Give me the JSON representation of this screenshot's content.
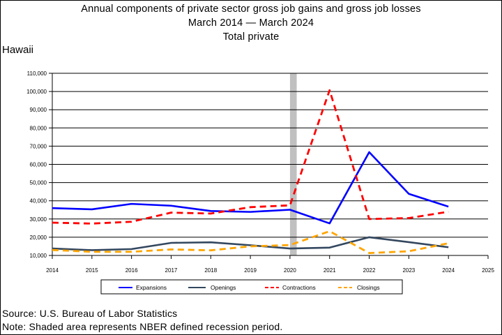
{
  "header": {
    "line1": "Annual components of private sector gross job gains and gross job losses",
    "line2": "March 2014 — March 2024",
    "line3": "Total private"
  },
  "region": "Hawaii",
  "footer": {
    "source": "Source: U.S. Bureau of Labor Statistics",
    "note": "Note: Shaded area represents NBER defined recession period."
  },
  "chart_data": {
    "type": "line",
    "x": [
      2014,
      2015,
      2016,
      2017,
      2018,
      2019,
      2020,
      2021,
      2022,
      2023,
      2024
    ],
    "xticks": [
      "2014",
      "2015",
      "2016",
      "2017",
      "2018",
      "2019",
      "2020",
      "2021",
      "2022",
      "2023",
      "2024",
      "2025"
    ],
    "xlim": [
      2014,
      2025
    ],
    "ylim": [
      10000,
      110000
    ],
    "yticks": [
      "10,000",
      "20,000",
      "30,000",
      "40,000",
      "50,000",
      "60,000",
      "70,000",
      "80,000",
      "90,000",
      "100,000",
      "110,000"
    ],
    "recession": [
      2020,
      2020.17
    ],
    "series": [
      {
        "name": "Expansions",
        "color": "#0000ff",
        "dash": "solid",
        "values": [
          36000,
          35300,
          38300,
          37300,
          34400,
          33900,
          35100,
          27600,
          66700,
          43800,
          36800
        ]
      },
      {
        "name": "Openings",
        "color": "#33475f",
        "dash": "solid",
        "values": [
          13800,
          12900,
          13500,
          16900,
          17200,
          15600,
          13800,
          14300,
          20000,
          17300,
          14500
        ]
      },
      {
        "name": "Contractions",
        "color": "#ff0000",
        "dash": "dashed",
        "values": [
          28000,
          27500,
          28500,
          33500,
          33000,
          36500,
          37500,
          100700,
          30000,
          30500,
          34000
        ]
      },
      {
        "name": "Closings",
        "color": "#ffa500",
        "dash": "dashed",
        "values": [
          13000,
          12000,
          12000,
          13300,
          12800,
          15000,
          15700,
          23300,
          11300,
          12300,
          16700
        ]
      }
    ]
  }
}
